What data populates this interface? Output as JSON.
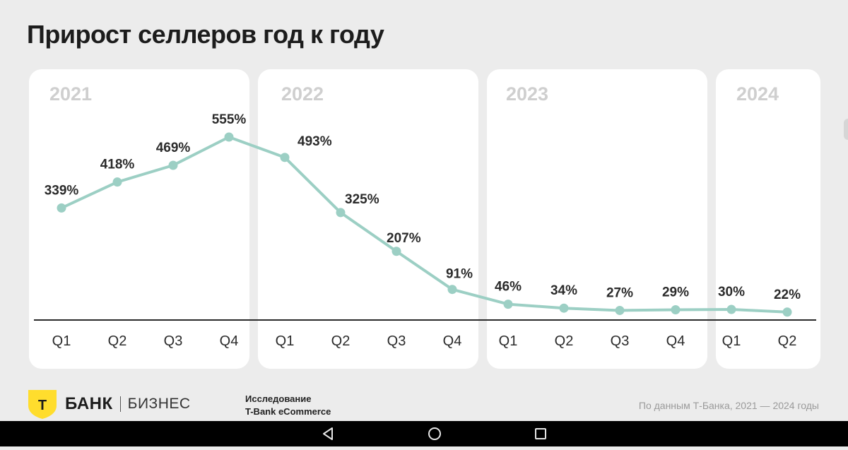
{
  "title": "Прирост селлеров год к году",
  "years": [
    "2021",
    "2022",
    "2023",
    "2024"
  ],
  "chart_data": {
    "type": "line",
    "title": "Прирост селлеров год к году",
    "categories": [
      "Q1",
      "Q2",
      "Q3",
      "Q4",
      "Q1",
      "Q2",
      "Q3",
      "Q4",
      "Q1",
      "Q2",
      "Q3",
      "Q4",
      "Q1",
      "Q2"
    ],
    "years": [
      "2021",
      "2022",
      "2023",
      "2024"
    ],
    "values": [
      339,
      418,
      469,
      555,
      493,
      325,
      207,
      91,
      46,
      34,
      27,
      29,
      30,
      22
    ],
    "labels": [
      "339%",
      "418%",
      "469%",
      "555%",
      "493%",
      "325%",
      "207%",
      "91%",
      "46%",
      "34%",
      "27%",
      "29%",
      "30%",
      "22%"
    ],
    "unit": "%",
    "line_color": "#9ccfc4",
    "grid": false,
    "legend": "none"
  },
  "footer": {
    "logo_letter": "Т",
    "brand": "БАНК",
    "brand_sub": "БИЗНЕС",
    "study_line1": "Исследование",
    "study_line2": "T-Bank eCommerce",
    "source": "По данным Т-Банка, 2021 — 2024 годы"
  },
  "colors": {
    "background": "#ececec",
    "panel": "#ffffff",
    "accent_yellow": "#ffdd2d",
    "year_label": "#cfcfcf"
  },
  "navbar": {
    "icons": [
      "back-icon",
      "home-icon",
      "recents-icon"
    ]
  }
}
